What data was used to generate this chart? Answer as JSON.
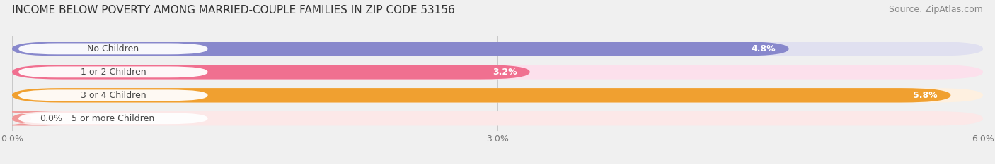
{
  "title": "INCOME BELOW POVERTY AMONG MARRIED-COUPLE FAMILIES IN ZIP CODE 53156",
  "source": "Source: ZipAtlas.com",
  "categories": [
    "No Children",
    "1 or 2 Children",
    "3 or 4 Children",
    "5 or more Children"
  ],
  "values": [
    4.8,
    3.2,
    5.8,
    0.0
  ],
  "value_labels": [
    "4.8%",
    "3.2%",
    "5.8%",
    "0.0%"
  ],
  "bar_colors": [
    "#8888cc",
    "#f07090",
    "#f0a030",
    "#f09898"
  ],
  "track_colors": [
    "#e0e0f0",
    "#fce0ec",
    "#fef0e0",
    "#fce8e8"
  ],
  "xlim": [
    0,
    6.0
  ],
  "xticks": [
    0.0,
    3.0,
    6.0
  ],
  "xticklabels": [
    "0.0%",
    "3.0%",
    "6.0%"
  ],
  "background_color": "#f0f0f0",
  "bar_height": 0.62,
  "title_fontsize": 11,
  "source_fontsize": 9,
  "label_fontsize": 9,
  "value_fontsize": 9,
  "tick_fontsize": 9
}
